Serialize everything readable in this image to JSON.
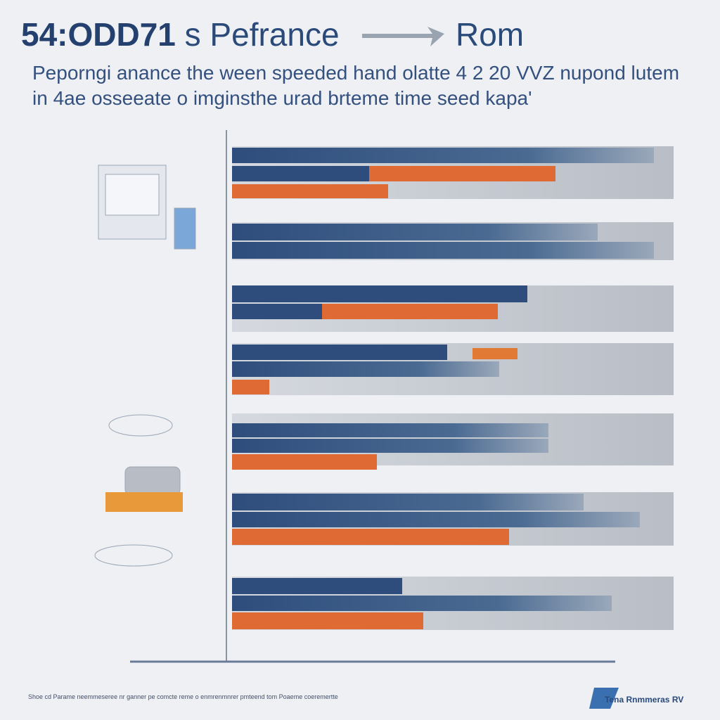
{
  "header": {
    "title_bold": "54:ODD71",
    "title": "s Pefrance",
    "title_tail": "Rom",
    "subtitle": [
      "Peporngi anance the ween speeded hand olatte 4 2 20 VVZ nupond lutem",
      "in 4ae osseeate o imginsthe urad brteme time seed kapa'"
    ]
  },
  "footer": {
    "note": "Shoe cd Parame neemmeseree nr ganner pe comcte reme o enmrenmnrer pmteend tom Poaeme coeremertte",
    "logo": "Tena Rnmmeras RV"
  }
}
